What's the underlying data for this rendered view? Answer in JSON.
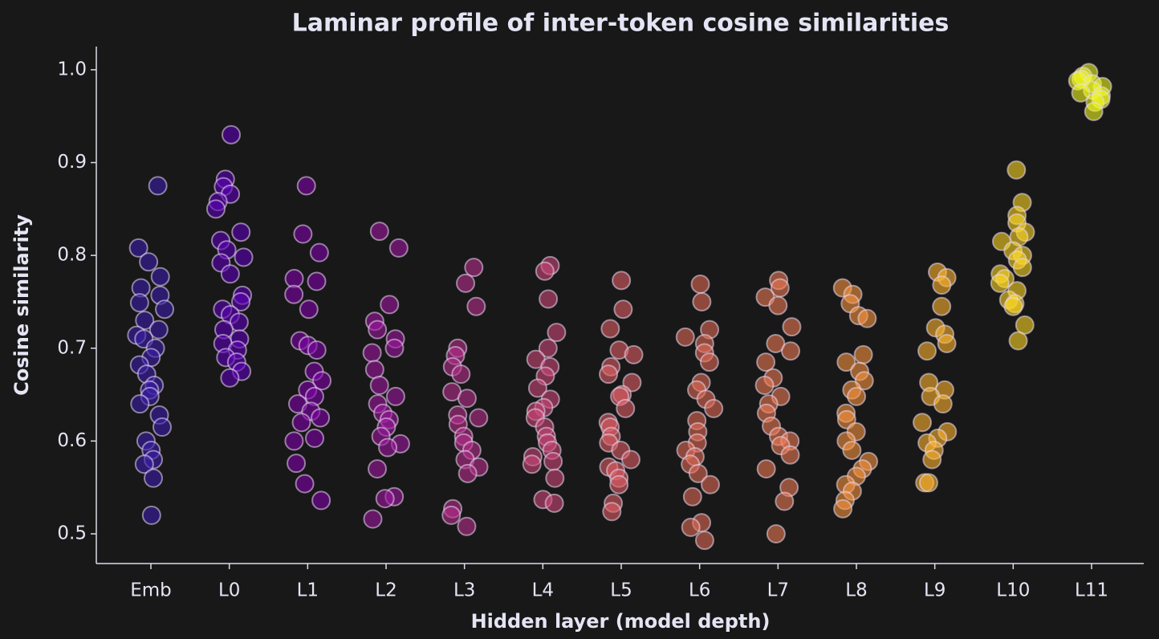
{
  "chart_data": {
    "type": "strip",
    "title": "Laminar profile of inter-token cosine similarities",
    "x_label": "Hidden layer (model depth)",
    "y_label": "Cosine similarity",
    "categories": [
      "Emb",
      "L0",
      "L1",
      "L2",
      "L3",
      "L4",
      "L5",
      "L6",
      "L7",
      "L8",
      "L9",
      "L10",
      "L11"
    ],
    "colors": [
      "#3a1ea8",
      "#5c01b6",
      "#7e03a8",
      "#9c179e",
      "#b52f8c",
      "#cc4778",
      "#de5f65",
      "#e06a55",
      "#ed7953",
      "#f89540",
      "#fdb42f",
      "#fbd524",
      "#f0f921"
    ],
    "values": [
      [
        0.875,
        0.808,
        0.793,
        0.777,
        0.765,
        0.757,
        0.749,
        0.742,
        0.73,
        0.72,
        0.714,
        0.71,
        0.7,
        0.69,
        0.682,
        0.672,
        0.66,
        0.655,
        0.648,
        0.64,
        0.628,
        0.615,
        0.6,
        0.59,
        0.58,
        0.575,
        0.56,
        0.52
      ],
      [
        0.93,
        0.882,
        0.874,
        0.866,
        0.858,
        0.85,
        0.825,
        0.816,
        0.806,
        0.798,
        0.792,
        0.78,
        0.757,
        0.75,
        0.742,
        0.736,
        0.728,
        0.72,
        0.71,
        0.705,
        0.698,
        0.69,
        0.685,
        0.675,
        0.668
      ],
      [
        0.875,
        0.823,
        0.803,
        0.775,
        0.772,
        0.758,
        0.742,
        0.708,
        0.703,
        0.698,
        0.675,
        0.665,
        0.655,
        0.648,
        0.64,
        0.632,
        0.625,
        0.62,
        0.603,
        0.6,
        0.576,
        0.554,
        0.536
      ],
      [
        0.826,
        0.808,
        0.747,
        0.729,
        0.72,
        0.71,
        0.7,
        0.695,
        0.677,
        0.66,
        0.648,
        0.64,
        0.63,
        0.623,
        0.615,
        0.605,
        0.597,
        0.593,
        0.57,
        0.54,
        0.538,
        0.516
      ],
      [
        0.787,
        0.77,
        0.745,
        0.7,
        0.692,
        0.68,
        0.672,
        0.653,
        0.646,
        0.628,
        0.625,
        0.618,
        0.605,
        0.598,
        0.59,
        0.58,
        0.572,
        0.565,
        0.527,
        0.52,
        0.508
      ],
      [
        0.789,
        0.783,
        0.753,
        0.717,
        0.7,
        0.688,
        0.68,
        0.67,
        0.657,
        0.645,
        0.636,
        0.632,
        0.625,
        0.615,
        0.605,
        0.598,
        0.59,
        0.583,
        0.578,
        0.575,
        0.56,
        0.537,
        0.533
      ],
      [
        0.773,
        0.742,
        0.721,
        0.698,
        0.693,
        0.68,
        0.672,
        0.663,
        0.65,
        0.648,
        0.635,
        0.62,
        0.615,
        0.605,
        0.598,
        0.59,
        0.58,
        0.572,
        0.568,
        0.56,
        0.553,
        0.533,
        0.524
      ],
      [
        0.769,
        0.75,
        0.72,
        0.712,
        0.705,
        0.695,
        0.685,
        0.663,
        0.655,
        0.645,
        0.635,
        0.622,
        0.61,
        0.598,
        0.59,
        0.583,
        0.575,
        0.565,
        0.553,
        0.54,
        0.512,
        0.507,
        0.493
      ],
      [
        0.773,
        0.765,
        0.755,
        0.746,
        0.723,
        0.705,
        0.697,
        0.685,
        0.668,
        0.66,
        0.648,
        0.64,
        0.63,
        0.616,
        0.605,
        0.6,
        0.595,
        0.585,
        0.57,
        0.55,
        0.535,
        0.5
      ],
      [
        0.765,
        0.758,
        0.748,
        0.735,
        0.732,
        0.693,
        0.685,
        0.675,
        0.665,
        0.655,
        0.648,
        0.63,
        0.623,
        0.61,
        0.6,
        0.59,
        0.578,
        0.57,
        0.562,
        0.553,
        0.546,
        0.536,
        0.527
      ],
      [
        0.782,
        0.776,
        0.768,
        0.745,
        0.722,
        0.715,
        0.705,
        0.697,
        0.663,
        0.655,
        0.648,
        0.64,
        0.62,
        0.61,
        0.603,
        0.598,
        0.59,
        0.58,
        0.555,
        0.555
      ],
      [
        0.892,
        0.857,
        0.843,
        0.835,
        0.825,
        0.82,
        0.815,
        0.805,
        0.8,
        0.795,
        0.787,
        0.78,
        0.775,
        0.77,
        0.762,
        0.752,
        0.748,
        0.745,
        0.725,
        0.708
      ],
      [
        0.997,
        0.993,
        0.99,
        0.988,
        0.985,
        0.982,
        0.978,
        0.975,
        0.972,
        0.968,
        0.965,
        0.955
      ]
    ],
    "ylim": [
      0.468,
      1.025
    ],
    "yticks": [
      {
        "value": 0.5,
        "label": "0.5"
      },
      {
        "value": 0.6,
        "label": "0.6"
      },
      {
        "value": 0.7,
        "label": "0.7"
      },
      {
        "value": 0.8,
        "label": "0.8"
      },
      {
        "value": 0.9,
        "label": "0.9"
      },
      {
        "value": 1.0,
        "label": "1.0"
      }
    ],
    "grid": false
  }
}
